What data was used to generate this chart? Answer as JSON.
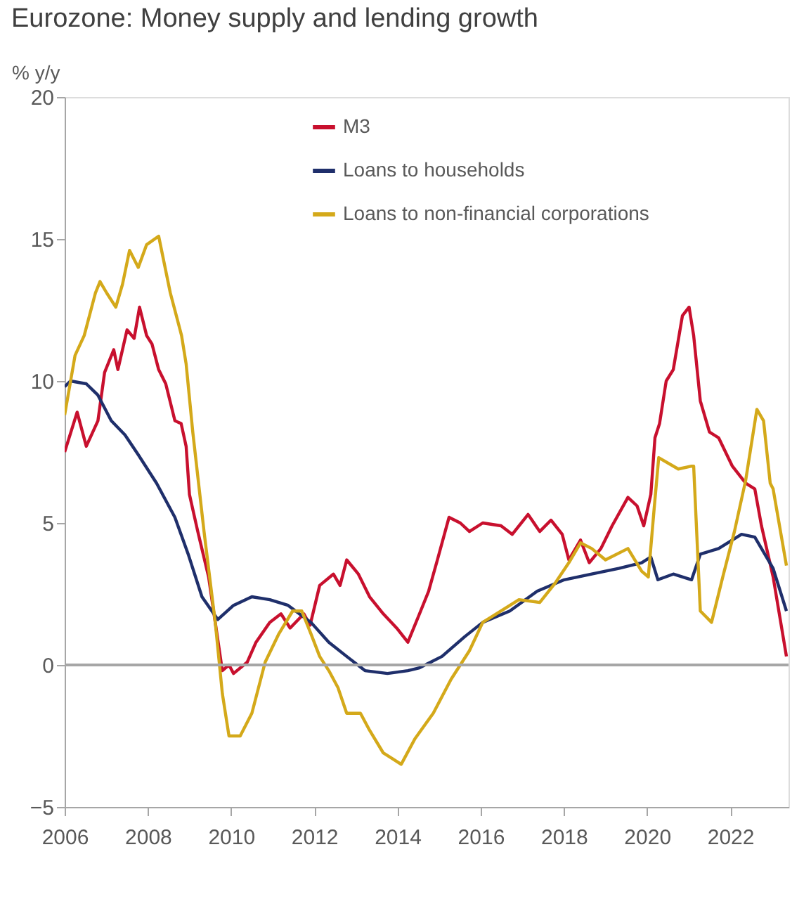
{
  "chart_data": {
    "type": "line",
    "title": "Eurozone: Money supply and lending growth",
    "ylabel": "% y/y",
    "xlim": [
      2006,
      2023.4
    ],
    "xticks": [
      2006,
      2008,
      2010,
      2012,
      2014,
      2016,
      2018,
      2020,
      2022
    ],
    "ylim": [
      -5,
      20
    ],
    "yticks": [
      -5,
      0,
      5,
      10,
      15,
      20
    ],
    "grid": false,
    "legend": "top",
    "line_style": "solid",
    "marker": "none",
    "ref_lines": [
      {
        "axis": "y",
        "value": 0,
        "color": "#a6a6a6"
      }
    ],
    "series": [
      {
        "name": "M3",
        "color": "#c8102e",
        "x": [
          2006.0,
          2006.3,
          2006.52,
          2006.8,
          2006.96,
          2007.18,
          2007.28,
          2007.5,
          2007.67,
          2007.8,
          2007.97,
          2008.1,
          2008.26,
          2008.43,
          2008.65,
          2008.8,
          2008.92,
          2009.0,
          2009.2,
          2009.46,
          2009.62,
          2009.79,
          2009.95,
          2010.06,
          2010.39,
          2010.6,
          2010.93,
          2011.2,
          2011.42,
          2011.75,
          2011.9,
          2012.13,
          2012.46,
          2012.62,
          2012.78,
          2013.06,
          2013.33,
          2013.66,
          2013.98,
          2014.25,
          2014.53,
          2014.75,
          2014.96,
          2015.24,
          2015.51,
          2015.73,
          2016.05,
          2016.49,
          2016.76,
          2017.14,
          2017.42,
          2017.69,
          2017.96,
          2018.12,
          2018.4,
          2018.61,
          2018.89,
          2019.16,
          2019.54,
          2019.76,
          2019.92,
          2020.09,
          2020.19,
          2020.3,
          2020.46,
          2020.63,
          2020.85,
          2021.01,
          2021.12,
          2021.28,
          2021.5,
          2021.72,
          2022.05,
          2022.37,
          2022.59,
          2022.75,
          2023.03,
          2023.35
        ],
        "values": [
          7.5,
          8.9,
          7.7,
          8.6,
          10.3,
          11.1,
          10.4,
          11.8,
          11.5,
          12.6,
          11.6,
          11.3,
          10.4,
          9.9,
          8.6,
          8.5,
          7.7,
          6.0,
          4.7,
          3.1,
          1.5,
          -0.2,
          0.0,
          -0.3,
          0.1,
          0.8,
          1.5,
          1.8,
          1.3,
          1.8,
          1.4,
          2.8,
          3.2,
          2.8,
          3.7,
          3.2,
          2.4,
          1.8,
          1.3,
          0.8,
          1.8,
          2.6,
          3.7,
          5.2,
          5.0,
          4.7,
          5.0,
          4.9,
          4.6,
          5.3,
          4.7,
          5.1,
          4.6,
          3.7,
          4.4,
          3.6,
          4.1,
          4.9,
          5.9,
          5.6,
          4.9,
          6.0,
          8.0,
          8.5,
          10.0,
          10.4,
          12.3,
          12.6,
          11.6,
          9.3,
          8.2,
          8.0,
          7.0,
          6.4,
          6.2,
          4.9,
          3.1,
          0.3
        ]
      },
      {
        "name": "Loans to households",
        "color": "#1f2f6b",
        "x": [
          2006.0,
          2006.14,
          2006.52,
          2006.8,
          2007.12,
          2007.45,
          2007.77,
          2008.21,
          2008.65,
          2008.97,
          2009.3,
          2009.68,
          2010.06,
          2010.5,
          2010.93,
          2011.37,
          2011.92,
          2012.35,
          2012.78,
          2013.22,
          2013.76,
          2014.25,
          2014.53,
          2015.07,
          2015.62,
          2016.05,
          2016.7,
          2017.36,
          2018.01,
          2018.67,
          2019.32,
          2019.87,
          2020.09,
          2020.26,
          2020.63,
          2021.07,
          2021.28,
          2021.72,
          2022.27,
          2022.59,
          2023.03,
          2023.35
        ],
        "values": [
          9.8,
          10.0,
          9.9,
          9.5,
          8.6,
          8.1,
          7.4,
          6.4,
          5.2,
          3.9,
          2.4,
          1.6,
          2.1,
          2.4,
          2.3,
          2.1,
          1.5,
          0.8,
          0.3,
          -0.2,
          -0.3,
          -0.2,
          -0.1,
          0.3,
          1.0,
          1.5,
          1.9,
          2.6,
          3.0,
          3.2,
          3.4,
          3.6,
          3.8,
          3.0,
          3.2,
          3.0,
          3.9,
          4.1,
          4.6,
          4.5,
          3.4,
          1.9
        ]
      },
      {
        "name": "Loans to non-financial corporations",
        "color": "#d4a91a",
        "x": [
          2006.0,
          2006.25,
          2006.47,
          2006.74,
          2006.85,
          2007.01,
          2007.23,
          2007.39,
          2007.56,
          2007.77,
          2007.97,
          2008.26,
          2008.54,
          2008.81,
          2008.92,
          2009.08,
          2009.35,
          2009.62,
          2009.79,
          2009.95,
          2010.22,
          2010.5,
          2010.82,
          2011.15,
          2011.48,
          2011.7,
          2011.92,
          2012.13,
          2012.35,
          2012.57,
          2012.78,
          2013.11,
          2013.33,
          2013.66,
          2013.88,
          2014.09,
          2014.42,
          2014.86,
          2015.29,
          2015.73,
          2016.05,
          2016.49,
          2016.92,
          2017.42,
          2017.8,
          2018.12,
          2018.4,
          2018.67,
          2019.0,
          2019.54,
          2019.87,
          2020.03,
          2020.17,
          2020.28,
          2020.75,
          2021.07,
          2021.12,
          2021.28,
          2021.55,
          2021.82,
          2022.1,
          2022.37,
          2022.64,
          2022.8,
          2022.96,
          2023.03,
          2023.35
        ],
        "values": [
          8.8,
          10.9,
          11.6,
          13.1,
          13.5,
          13.1,
          12.6,
          13.4,
          14.6,
          14.0,
          14.8,
          15.1,
          13.1,
          11.6,
          10.6,
          8.2,
          4.7,
          1.5,
          -1.0,
          -2.5,
          -2.5,
          -1.7,
          0.1,
          1.1,
          1.9,
          1.9,
          1.1,
          0.3,
          -0.2,
          -0.8,
          -1.7,
          -1.7,
          -2.3,
          -3.1,
          -3.3,
          -3.5,
          -2.6,
          -1.7,
          -0.5,
          0.5,
          1.5,
          1.9,
          2.3,
          2.2,
          2.9,
          3.6,
          4.3,
          4.1,
          3.7,
          4.1,
          3.3,
          3.1,
          5.5,
          7.3,
          6.9,
          7.0,
          7.0,
          1.9,
          1.5,
          3.1,
          4.7,
          6.5,
          9.0,
          8.6,
          6.4,
          6.2,
          3.5
        ]
      }
    ]
  }
}
